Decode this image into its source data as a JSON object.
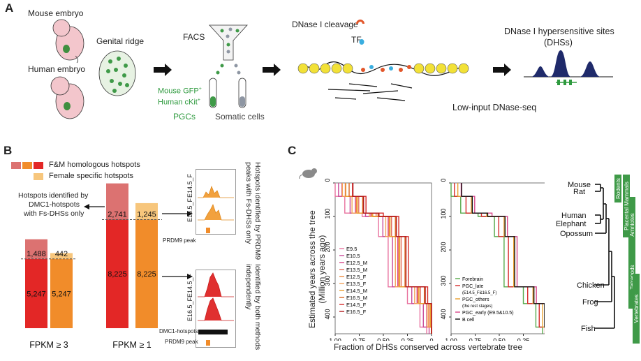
{
  "panels": {
    "a": "A",
    "b": "B",
    "c": "C"
  },
  "panel_a": {
    "mouse_embryo": "Mouse embryo",
    "human_embryo": "Human embryo",
    "genital_ridge": "Genital ridge",
    "facs": "FACS",
    "mouse_gfp": "Mouse GFP",
    "human_ckit": "Human cKit",
    "plus": "+",
    "pgcs": "PGCs",
    "somatic": "Somatic cells",
    "dnase_cleavage": "DNase I cleavage",
    "tf": "TF",
    "dhs_title_1": "DNase I hypersensitive sites",
    "dhs_title_2": "(DHSs)",
    "low_input": "Low-input DNase-seq"
  },
  "panel_b": {
    "legend_fm": "F&M homologous hotspots",
    "legend_female": "Female specific hotspots",
    "dmc1_note_1": "Hotspots identified by",
    "dmc1_note_2": "DMC1-hotspots",
    "dmc1_note_3": "with Fs-DHSs only",
    "prdm9_note_1": "Hotspots identified by PRDM9",
    "prdm9_note_2": "peaks with Fs-DHSs only",
    "both_note_1": "Identified by both methods",
    "both_note_2": "independently",
    "track_e14": "E14.5_F",
    "track_e16": "E16.5_F",
    "prdm9_peak": "PRDM9 peak",
    "dmc1_hotspots": "DMC1-hotspots",
    "chart_data": {
      "type": "bar",
      "categories": [
        "FPKM ≥ 3",
        "FPKM ≥ 1"
      ],
      "series": [
        {
          "name": "F&M homologous hotspots",
          "bottom": [
            5247,
            8225
          ],
          "top": [
            1488,
            2741
          ]
        },
        {
          "name": "Female specific hotspots",
          "bottom": [
            5247,
            8225
          ],
          "top": [
            442,
            1245
          ]
        }
      ],
      "labels": {
        "g1_red_bottom": "5,247",
        "g1_red_top": "1,488",
        "g1_orange_bottom": "5,247",
        "g1_orange_top": "442",
        "g2_red_bottom": "8,225",
        "g2_red_top": "2,741",
        "g2_orange_bottom": "8,225",
        "g2_orange_top": "1,245"
      },
      "colors": {
        "red": "#e32726",
        "red_light": "#dc7271",
        "orange": "#f18c2a",
        "orange_light": "#f7c67c"
      }
    }
  },
  "panel_c": {
    "ylabel_1": "Estimated years across the tree",
    "ylabel_2": "(Million years ago)",
    "xlabel": "Fraction of DHSs conserved across vertebrate tree",
    "yticks": [
      "0",
      "100",
      "200",
      "300",
      "400"
    ],
    "xticks": [
      "1.00",
      "0.75",
      "0.50",
      "0.25",
      "0"
    ],
    "chart_data": [
      {
        "type": "line",
        "series": [
          {
            "name": "E9.5",
            "color": "#e8719e"
          },
          {
            "name": "E10.5",
            "color": "#c94a9a"
          },
          {
            "name": "E12.5_M",
            "color": "#d8468a"
          },
          {
            "name": "E13.5_M",
            "color": "#e46c5c"
          },
          {
            "name": "E12.5_F",
            "color": "#f08a3c"
          },
          {
            "name": "E13.5_F",
            "color": "#f3a35a"
          },
          {
            "name": "E14.5_M",
            "color": "#e9a030"
          },
          {
            "name": "E16.5_M",
            "color": "#d9661f"
          },
          {
            "name": "E14.5_F",
            "color": "#d62a2a"
          },
          {
            "name": "E16.5_F",
            "color": "#b2181b"
          }
        ],
        "ylim": [
          0,
          450
        ],
        "xlim": [
          1.0,
          0.0
        ]
      },
      {
        "type": "line",
        "series": [
          {
            "name": "Forebrain",
            "color": "#56a94a"
          },
          {
            "name": "PGC_late",
            "sub": "(E14.5_F&16.5_F)",
            "color": "#d62a2a"
          },
          {
            "name": "PGC_others",
            "sub": "(the rest stages)",
            "color": "#e9a030"
          },
          {
            "name": "PGC_early (E9.5&10.5)",
            "color": "#d8468a"
          },
          {
            "name": "B cell",
            "color": "#111111"
          }
        ],
        "ylim": [
          0,
          450
        ],
        "xlim": [
          1.0,
          0.0
        ]
      }
    ],
    "tree": {
      "species": [
        "Mouse",
        "Rat",
        "Human",
        "Elephant",
        "Opossum",
        "Chicken",
        "Frog",
        "Fish"
      ],
      "clades": [
        "Rodents",
        "Placental Mammals",
        "Amniotes",
        "Tetrapods",
        "Vertebrates"
      ]
    }
  }
}
